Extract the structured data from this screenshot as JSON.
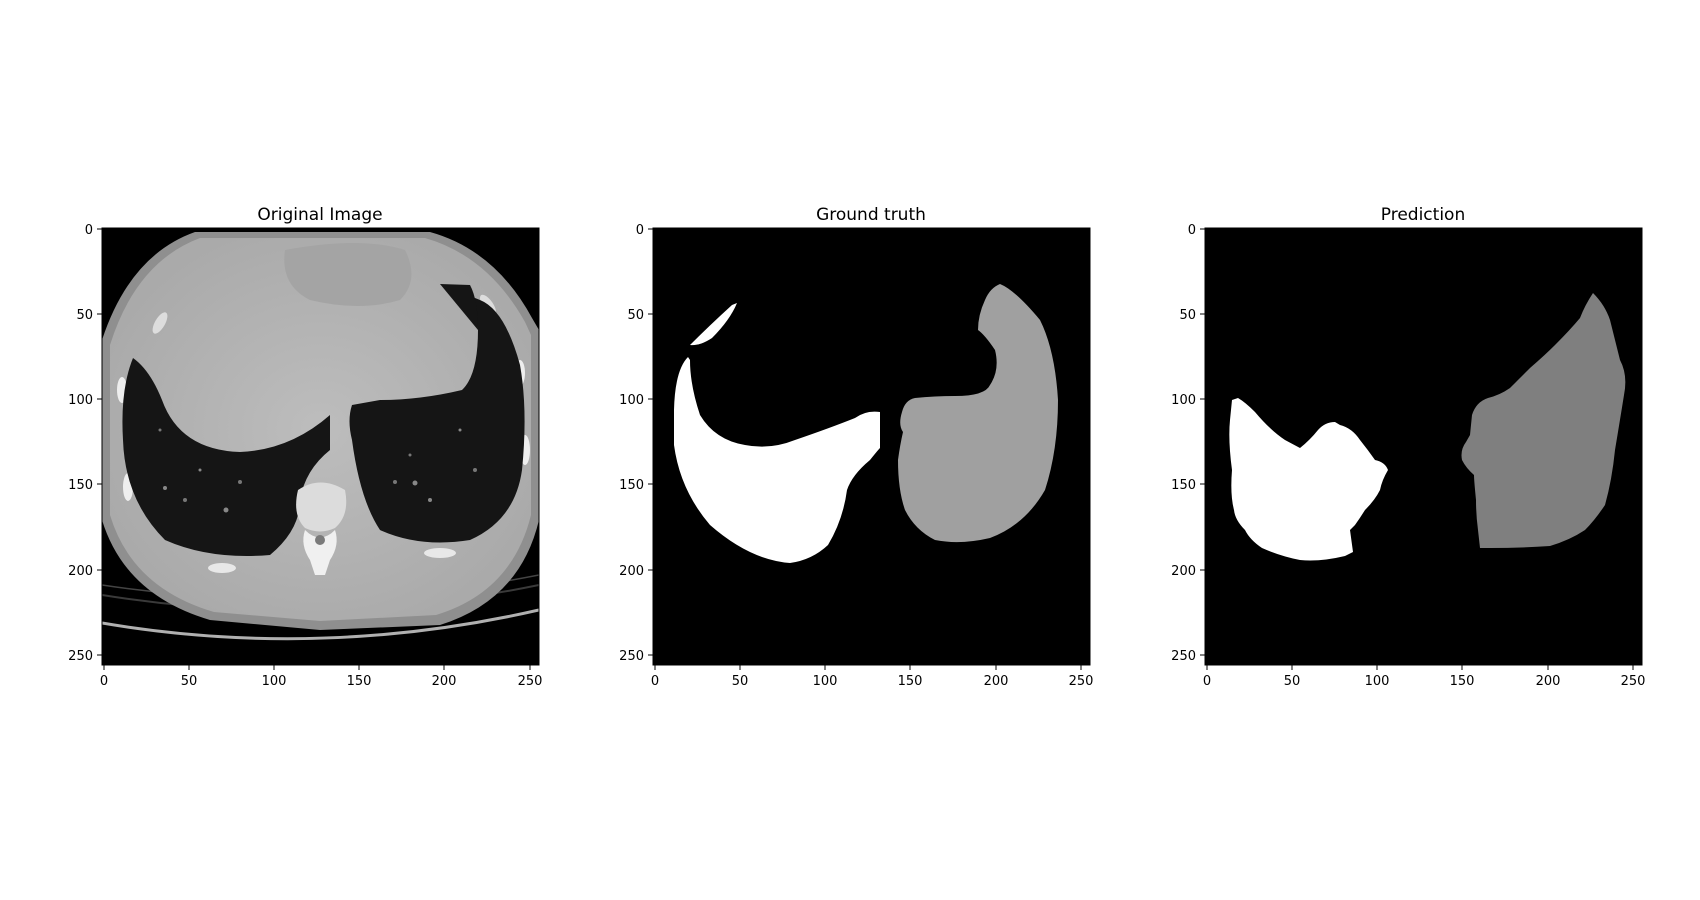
{
  "panels": [
    {
      "title": "Original Image",
      "x_ticks": [
        "0",
        "50",
        "100",
        "150",
        "200",
        "250"
      ],
      "y_ticks": [
        "0",
        "50",
        "100",
        "150",
        "200",
        "250"
      ]
    },
    {
      "title": "Ground truth",
      "x_ticks": [
        "0",
        "50",
        "100",
        "150",
        "200",
        "250"
      ],
      "y_ticks": [
        "0",
        "50",
        "100",
        "150",
        "200",
        "250"
      ]
    },
    {
      "title": "Prediction",
      "x_ticks": [
        "0",
        "50",
        "100",
        "150",
        "200",
        "250"
      ],
      "y_ticks": [
        "0",
        "50",
        "100",
        "150",
        "200",
        "250"
      ]
    }
  ],
  "image_extent": [
    0,
    256
  ],
  "tick_values": [
    0,
    50,
    100,
    150,
    200,
    250
  ],
  "colors": {
    "background": "#ffffff",
    "mask_background": "#000000",
    "left_lung_mask": "#ffffff",
    "right_lung_mask_truth": "#a0a0a0",
    "right_lung_mask_prediction": "#7f7f7f",
    "ct_body": "#b9b9b9",
    "ct_lung": "#141414"
  }
}
